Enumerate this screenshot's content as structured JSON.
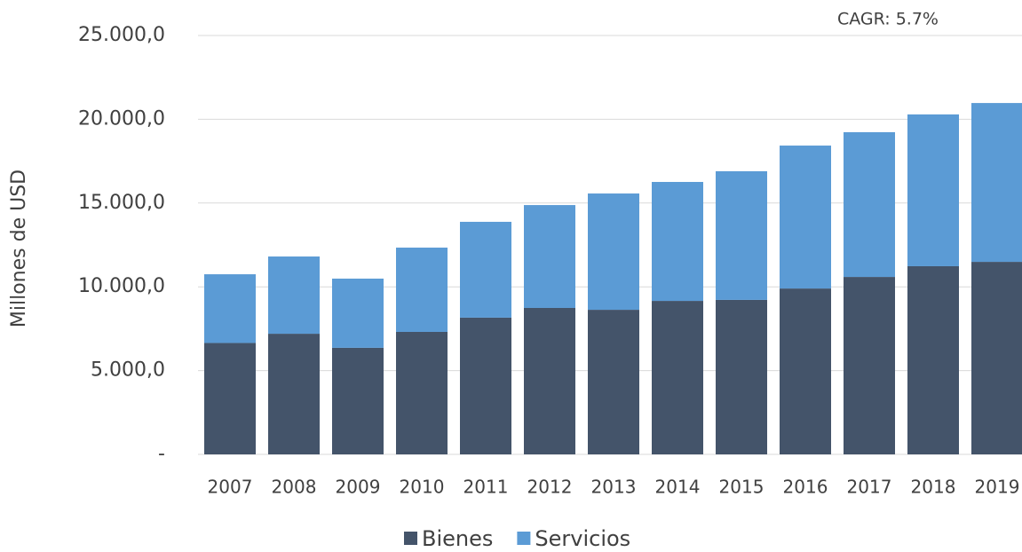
{
  "chart_data": {
    "type": "stacked_bar",
    "y_label": "Millones de USD",
    "annotation": "CAGR: 5.7%",
    "categories": [
      "2007",
      "2008",
      "2009",
      "2010",
      "2011",
      "2012",
      "2013",
      "2014",
      "2015",
      "2016",
      "2017",
      "2018",
      "2019"
    ],
    "series": [
      {
        "name": "Bienes",
        "color": "#44546a",
        "values": [
          6650,
          7200,
          6360,
          7310,
          8160,
          8740,
          8630,
          9160,
          9220,
          9900,
          10590,
          11230,
          11490
        ]
      },
      {
        "name": "Servicios",
        "color": "#5b9bd5",
        "values": [
          4100,
          4610,
          4130,
          5030,
          5720,
          6140,
          6940,
          7100,
          7680,
          8530,
          8640,
          9060,
          9480
        ]
      }
    ],
    "ylim": [
      0,
      25000
    ],
    "yticks": [
      {
        "value": 0,
        "label": "-"
      },
      {
        "value": 5000,
        "label": "5.000,0"
      },
      {
        "value": 10000,
        "label": "10.000,0"
      },
      {
        "value": 15000,
        "label": "15.000,0"
      },
      {
        "value": 20000,
        "label": "20.000,0"
      },
      {
        "value": 25000,
        "label": "25.000,0"
      }
    ],
    "grid": true,
    "legend": "bottom"
  }
}
